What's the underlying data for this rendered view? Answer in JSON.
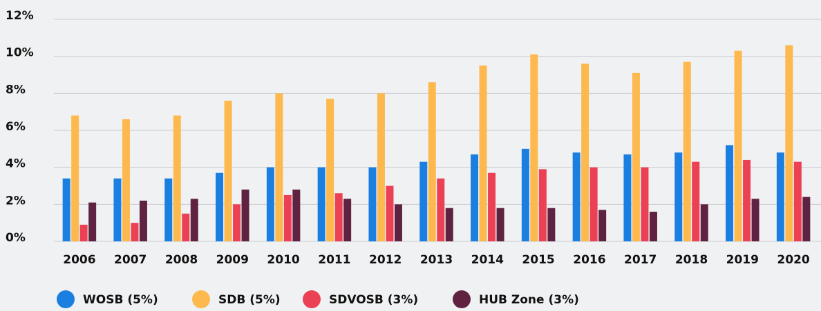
{
  "chart_data": {
    "type": "bar",
    "categories": [
      "2006",
      "2007",
      "2008",
      "2009",
      "2010",
      "2011",
      "2012",
      "2013",
      "2014",
      "2015",
      "2016",
      "2017",
      "2018",
      "2019",
      "2020"
    ],
    "series": [
      {
        "name": "WOSB (5%)",
        "color": "#1a7fe0",
        "values": [
          3.4,
          3.4,
          3.4,
          3.7,
          4.0,
          4.0,
          4.0,
          4.3,
          4.7,
          5.0,
          4.8,
          4.7,
          4.8,
          5.2,
          4.8
        ]
      },
      {
        "name": "SDB (5%)",
        "color": "#fdb94e",
        "values": [
          6.8,
          6.6,
          6.8,
          7.6,
          8.0,
          7.7,
          8.0,
          8.6,
          9.5,
          10.1,
          9.6,
          9.1,
          9.7,
          10.3,
          10.6
        ]
      },
      {
        "name": "SDVOSB (3%)",
        "color": "#ec4155",
        "values": [
          0.9,
          1.0,
          1.5,
          2.0,
          2.5,
          2.6,
          3.0,
          3.4,
          3.7,
          3.9,
          4.0,
          4.0,
          4.3,
          4.4,
          4.3
        ]
      },
      {
        "name": "HUB Zone (3%)",
        "color": "#5f2240",
        "values": [
          2.1,
          2.2,
          2.3,
          2.8,
          2.8,
          2.3,
          2.0,
          1.8,
          1.8,
          1.8,
          1.7,
          1.6,
          2.0,
          2.3,
          2.4
        ]
      }
    ],
    "ylim": [
      0,
      12
    ],
    "yticks": [
      {
        "value": 0,
        "label": "0%"
      },
      {
        "value": 2,
        "label": "2%"
      },
      {
        "value": 4,
        "label": "4%"
      },
      {
        "value": 6,
        "label": "6%"
      },
      {
        "value": 8,
        "label": "8%"
      },
      {
        "value": 10,
        "label": "10%"
      },
      {
        "value": 12,
        "label": "12%"
      }
    ],
    "grid": true,
    "legend": "bottom"
  }
}
